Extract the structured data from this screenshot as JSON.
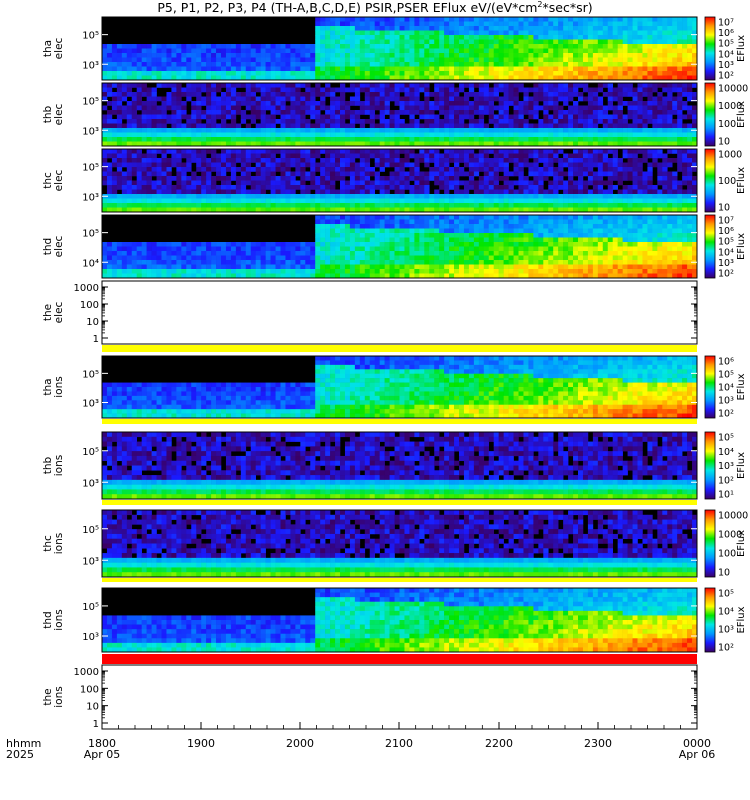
{
  "title_text": "P5, P1, P2, P3, P4 (TH-A,B,C,D,E) PSIR,PSER EFlux eV/(eV*cm",
  "title_sup": "2",
  "title_tail": "*sec*sr)",
  "time_axis": {
    "ticks": [
      "1800",
      "1900",
      "2000",
      "2100",
      "2200",
      "2300",
      "0000"
    ],
    "date_labels": [
      {
        "tick": "1800",
        "text": "Apr 05"
      },
      {
        "tick": "0000",
        "text": "Apr 06"
      }
    ],
    "left_labels": [
      "hhmm",
      "2025"
    ]
  },
  "colors": {
    "colorbar_gradient": [
      "#3a0064",
      "#1a1aff",
      "#0099ff",
      "#00e6e6",
      "#00e600",
      "#ffff00",
      "#ff9900",
      "#ff0000"
    ],
    "data_gap": "#000000",
    "background": "#ffffff"
  },
  "chart_data": [
    {
      "type": "heatmap",
      "panel": "tha_elec",
      "ylabel": [
        "tha",
        "elec"
      ],
      "ylog": true,
      "y_ticks": [
        "10^5",
        "10^3"
      ],
      "cbar_label": "EFlux",
      "cbar_ticks": [
        "10^7",
        "10^6",
        "10^5",
        "10^4",
        "10^3",
        "10^2"
      ],
      "features": {
        "gap_until": "2010",
        "high_after": "2010"
      }
    },
    {
      "type": "heatmap",
      "panel": "thb_elec",
      "ylabel": [
        "thb",
        "elec"
      ],
      "ylog": true,
      "y_ticks": [
        "10^5",
        "10^3"
      ],
      "cbar_label": "EFlux",
      "cbar_ticks": [
        "10000",
        "1000",
        "100",
        "10"
      ]
    },
    {
      "type": "heatmap",
      "panel": "thc_elec",
      "ylabel": [
        "thc",
        "elec"
      ],
      "ylog": true,
      "y_ticks": [
        "10^5",
        "10^3"
      ],
      "cbar_label": "EFlux",
      "cbar_ticks": [
        "1000",
        "100",
        "10"
      ]
    },
    {
      "type": "heatmap",
      "panel": "thd_elec",
      "ylabel": [
        "thd",
        "elec"
      ],
      "ylog": true,
      "y_ticks": [
        "10^5",
        "10^4"
      ],
      "cbar_label": "EFlux",
      "cbar_ticks": [
        "10^7",
        "10^6",
        "10^5",
        "10^4",
        "10^3",
        "10^2"
      ]
    },
    {
      "type": "line",
      "panel": "the_elec",
      "ylabel": [
        "the",
        "elec"
      ],
      "ylog": true,
      "y_ticks": [
        "1000",
        "100",
        "10",
        "1"
      ],
      "series": []
    },
    {
      "type": "heatmap",
      "panel": "tha_ions",
      "ylabel": [
        "tha",
        "ions"
      ],
      "ylog": true,
      "y_ticks": [
        "10^5",
        "10^3"
      ],
      "cbar_label": "EFlux",
      "cbar_ticks": [
        "10^6",
        "10^5",
        "10^4",
        "10^3",
        "10^2"
      ]
    },
    {
      "type": "heatmap",
      "panel": "thb_ions",
      "ylabel": [
        "thb",
        "ions"
      ],
      "ylog": true,
      "y_ticks": [
        "10^5",
        "10^3"
      ],
      "cbar_label": "EFlux",
      "cbar_ticks": [
        "10^5",
        "10^4",
        "10^3",
        "10^2",
        "10^1"
      ]
    },
    {
      "type": "heatmap",
      "panel": "thc_ions",
      "ylabel": [
        "thc",
        "ions"
      ],
      "ylog": true,
      "y_ticks": [
        "10^5",
        "10^3"
      ],
      "cbar_label": "EFlux",
      "cbar_ticks": [
        "10000",
        "1000",
        "100",
        "10"
      ]
    },
    {
      "type": "heatmap",
      "panel": "thd_ions",
      "ylabel": [
        "thd",
        "ions"
      ],
      "ylog": true,
      "y_ticks": [
        "10^5",
        "10^3"
      ],
      "cbar_label": "EFlux",
      "cbar_ticks": [
        "10^5",
        "10^4",
        "10^3",
        "10^2"
      ]
    },
    {
      "type": "line",
      "panel": "the_ions",
      "ylabel": [
        "the",
        "ions"
      ],
      "ylog": true,
      "y_ticks": [
        "1000",
        "100",
        "10",
        "1"
      ],
      "series": []
    }
  ]
}
